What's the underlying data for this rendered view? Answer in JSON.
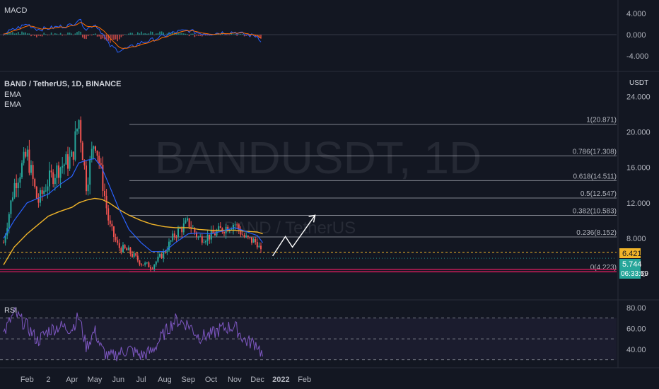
{
  "symbol_line": "BAND / TetherUS, 1D, BINANCE",
  "indicators": [
    "EMA",
    "EMA"
  ],
  "watermark": {
    "main": "BANDUSDT, 1D",
    "sub": "BAND / TetherUS"
  },
  "currency": "USDT",
  "colors": {
    "background": "#131722",
    "up": "#26a69a",
    "down": "#ef5350",
    "ema_fast": "#2962ff",
    "ema_slow": "#f0b429",
    "rsi": "#7e57c2",
    "fib_line": "#b2b5be",
    "support": "#e91e63",
    "arrow": "#ffffff"
  },
  "panes": {
    "macd": {
      "label": "MACD",
      "ticks": [
        "4.000",
        "0.000",
        "-4.000"
      ]
    },
    "price": {
      "ticks": [
        "24.000",
        "20.000",
        "16.000",
        "12.000",
        "8.000",
        "4.000"
      ]
    },
    "rsi": {
      "label": "RSI",
      "ticks": [
        "80.00",
        "60.00",
        "40.00"
      ]
    }
  },
  "fib_levels": [
    {
      "label": "1(20.871)"
    },
    {
      "label": "0.786(17.308)"
    },
    {
      "label": "0.618(14.511)"
    },
    {
      "label": "0.5(12.547)"
    },
    {
      "label": "0.382(10.583)"
    },
    {
      "label": "0.236(8.152)"
    },
    {
      "label": "0(4.223)"
    }
  ],
  "price_badges": {
    "prev": "6.421",
    "last": "5.744",
    "countdown": "06:33:59"
  },
  "x_ticks": [
    "Feb",
    "2",
    "Apr",
    "May",
    "Jun",
    "Jul",
    "Aug",
    "Sep",
    "Oct",
    "Nov",
    "Dec",
    "2022",
    "Feb"
  ],
  "chart_data": {
    "type": "candlestick",
    "title": "BAND / TetherUS, 1D, BINANCE",
    "x": [
      "2021-01-01",
      "2021-01-15",
      "2021-02-01",
      "2021-02-15",
      "2021-03-01",
      "2021-03-15",
      "2021-04-01",
      "2021-04-10",
      "2021-04-20",
      "2021-05-01",
      "2021-05-10",
      "2021-05-20",
      "2021-06-01",
      "2021-06-15",
      "2021-07-01",
      "2021-07-15",
      "2021-08-01",
      "2021-08-15",
      "2021-09-01",
      "2021-09-15",
      "2021-10-01",
      "2021-10-15",
      "2021-11-01",
      "2021-11-15",
      "2021-12-01",
      "2021-12-08"
    ],
    "close": [
      7.5,
      14.0,
      17.5,
      12.0,
      14.5,
      16.0,
      17.0,
      21.5,
      14.0,
      19.5,
      15.0,
      9.5,
      7.0,
      6.5,
      5.2,
      4.8,
      6.5,
      8.5,
      9.8,
      8.0,
      8.3,
      9.0,
      9.7,
      8.0,
      7.5,
      5.744
    ],
    "ema_fast": [
      8.0,
      10.0,
      12.0,
      12.5,
      13.0,
      14.0,
      15.0,
      16.5,
      16.8,
      17.0,
      16.0,
      14.0,
      11.5,
      9.0,
      7.5,
      6.5,
      6.5,
      7.5,
      8.5,
      8.6,
      8.5,
      8.8,
      9.2,
      8.8,
      8.3,
      7.5
    ],
    "ema_slow": [
      5.0,
      7.0,
      8.5,
      9.5,
      10.5,
      11.0,
      11.5,
      12.0,
      12.3,
      12.5,
      12.4,
      12.0,
      11.3,
      10.6,
      10.0,
      9.6,
      9.3,
      9.2,
      9.2,
      9.0,
      8.9,
      8.9,
      8.9,
      8.8,
      8.7,
      8.5
    ],
    "macd": [
      0.2,
      1.0,
      2.0,
      1.0,
      1.2,
      1.5,
      1.8,
      3.0,
      1.0,
      2.0,
      0.5,
      -2.0,
      -3.0,
      -2.5,
      -1.5,
      -1.0,
      -0.2,
      0.5,
      0.8,
      0.3,
      0.2,
      0.4,
      0.5,
      0.0,
      -0.3,
      -1.5
    ],
    "rsi": [
      55,
      75,
      62,
      48,
      58,
      62,
      60,
      72,
      42,
      58,
      40,
      32,
      36,
      40,
      34,
      38,
      56,
      68,
      64,
      52,
      54,
      60,
      62,
      48,
      45,
      33
    ],
    "ylim": [
      3.2,
      25
    ],
    "fib_values": [
      20.871,
      17.308,
      14.511,
      12.547,
      10.583,
      8.152,
      4.223
    ],
    "support_lines": [
      4.5,
      4.223
    ],
    "last_price": 5.744,
    "prev_close": 6.421,
    "projection": [
      6.0,
      8.2,
      7.0,
      10.6
    ]
  }
}
